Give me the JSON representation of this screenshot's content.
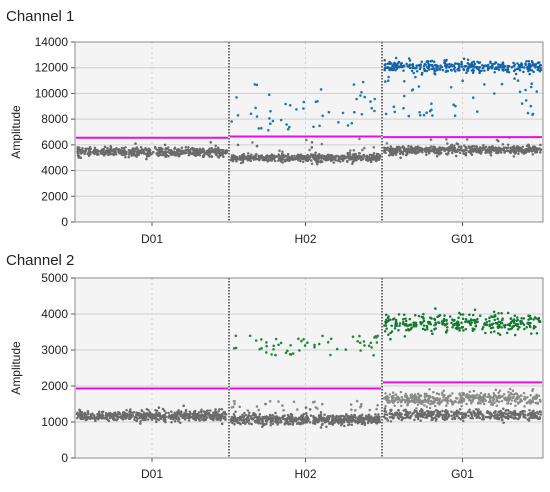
{
  "chart_data": [
    {
      "type": "scatter",
      "title": "Channel 1",
      "ylabel": "Amplitude",
      "xlabel": "",
      "ylim": [
        0,
        14000
      ],
      "yticks": [
        0,
        2000,
        4000,
        6000,
        8000,
        10000,
        12000,
        14000
      ],
      "grid": true,
      "wells": [
        {
          "name": "D01",
          "threshold": 6550,
          "series": [
            {
              "kind": "negative",
              "color": "#6b6b6b",
              "band": [
                5100,
                5800
              ],
              "count": 520,
              "outliers": [
                6100,
                6200,
                4900,
                6000,
                5000
              ]
            }
          ]
        },
        {
          "name": "H02",
          "threshold": 6650,
          "series": [
            {
              "kind": "negative",
              "color": "#6b6b6b",
              "band": [
                4650,
                5300
              ],
              "count": 520,
              "outliers": [
                5800,
                6000,
                5900,
                6200,
                4500
              ]
            },
            {
              "kind": "rain",
              "color": "#7f7f7f",
              "band": [
                5400,
                6500
              ],
              "count": 12
            },
            {
              "kind": "positive",
              "color": "#1f77b4",
              "band": [
                7000,
                10900
              ],
              "count": 48
            }
          ]
        },
        {
          "name": "G01",
          "threshold": 6600,
          "series": [
            {
              "kind": "negative",
              "color": "#6b6b6b",
              "band": [
                5250,
                5950
              ],
              "count": 520,
              "outliers": [
                6100,
                6300,
                5000
              ]
            },
            {
              "kind": "rain",
              "color": "#7f7f7f",
              "band": [
                6100,
                6600
              ],
              "count": 6
            },
            {
              "kind": "positive",
              "color": "#1565a8",
              "band": [
                11600,
                12600
              ],
              "count": 360
            },
            {
              "kind": "positive-rain",
              "color": "#1f77b4",
              "band": [
                8200,
                11500
              ],
              "count": 45
            }
          ]
        }
      ]
    },
    {
      "type": "scatter",
      "title": "Channel 2",
      "ylabel": "Amplitude",
      "xlabel": "",
      "ylim": [
        0,
        5000
      ],
      "yticks": [
        0,
        1000,
        2000,
        3000,
        4000,
        5000
      ],
      "grid": true,
      "wells": [
        {
          "name": "D01",
          "threshold": 1930,
          "series": [
            {
              "kind": "negative",
              "color": "#6b6b6b",
              "band": [
                1020,
                1320
              ],
              "count": 560,
              "outliers": [
                1400,
                1450,
                950
              ]
            }
          ]
        },
        {
          "name": "H02",
          "threshold": 1930,
          "series": [
            {
              "kind": "negative",
              "color": "#6b6b6b",
              "band": [
                920,
                1220
              ],
              "count": 560,
              "outliers": [
                1350,
                1500,
                1400,
                850
              ]
            },
            {
              "kind": "rain",
              "color": "#8a8a8a",
              "band": [
                1300,
                1600
              ],
              "count": 30
            },
            {
              "kind": "positive",
              "color": "#1e8a3c",
              "band": [
                2850,
                3450
              ],
              "count": 55
            }
          ]
        },
        {
          "name": "G01",
          "threshold": 2100,
          "series": [
            {
              "kind": "negative",
              "color": "#6b6b6b",
              "band": [
                1050,
                1350
              ],
              "count": 420
            },
            {
              "kind": "negative-high",
              "color": "#8a8a8a",
              "band": [
                1450,
                1850
              ],
              "count": 420
            },
            {
              "kind": "positive",
              "color": "#137a30",
              "band": [
                3450,
                4000
              ],
              "count": 300,
              "outliers": [
                4150,
                3300
              ]
            }
          ]
        }
      ]
    }
  ],
  "colors": {
    "threshold": "#e60fe6",
    "panel": "#f4f4f4",
    "divider": "#222222",
    "grid": "#cfcfcf"
  }
}
